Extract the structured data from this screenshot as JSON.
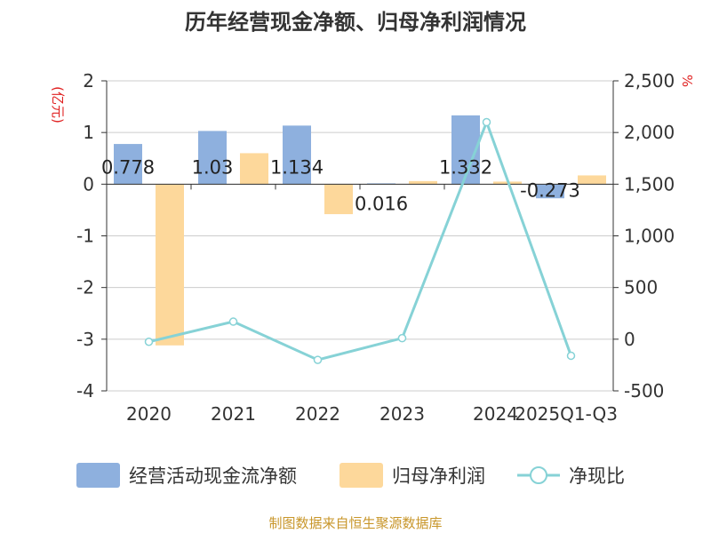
{
  "chart_data": {
    "type": "bar",
    "title": "历年经营现金净额、归母净利润情况",
    "categories": [
      "2020",
      "2021",
      "2022",
      "2023",
      "2024",
      "2025Q1-Q3"
    ],
    "series": [
      {
        "name": "经营活动现金流净额",
        "type": "bar",
        "axis": "left",
        "color": "#8eb0de",
        "values": [
          0.778,
          1.03,
          1.134,
          0.016,
          1.332,
          -0.273
        ],
        "data_labels": [
          "0.778",
          "1.03",
          "1.134",
          "0.016",
          "1.332",
          "-0.273"
        ]
      },
      {
        "name": "归母净利润",
        "type": "bar",
        "axis": "left",
        "color": "#fdd89b",
        "values": [
          -3.12,
          0.6,
          -0.58,
          0.06,
          0.05,
          0.17
        ]
      },
      {
        "name": "净现比",
        "type": "line",
        "axis": "right",
        "color": "#86d2d6",
        "values": [
          -25,
          170,
          -200,
          10,
          2100,
          -160
        ]
      }
    ],
    "y_left": {
      "unit": "(亿元)",
      "ylim": [
        -4,
        2
      ],
      "ticks": [
        "2",
        "1",
        "0",
        "-1",
        "-2",
        "-3",
        "-4"
      ]
    },
    "y_right": {
      "unit": "%",
      "ylim": [
        -500,
        2500
      ],
      "ticks": [
        "2,500",
        "2,000",
        "1,500",
        "1,000",
        "500",
        "0",
        "-500"
      ]
    },
    "legend_position": "bottom",
    "grid": true,
    "source": "制图数据来自恒生聚源数据库"
  }
}
